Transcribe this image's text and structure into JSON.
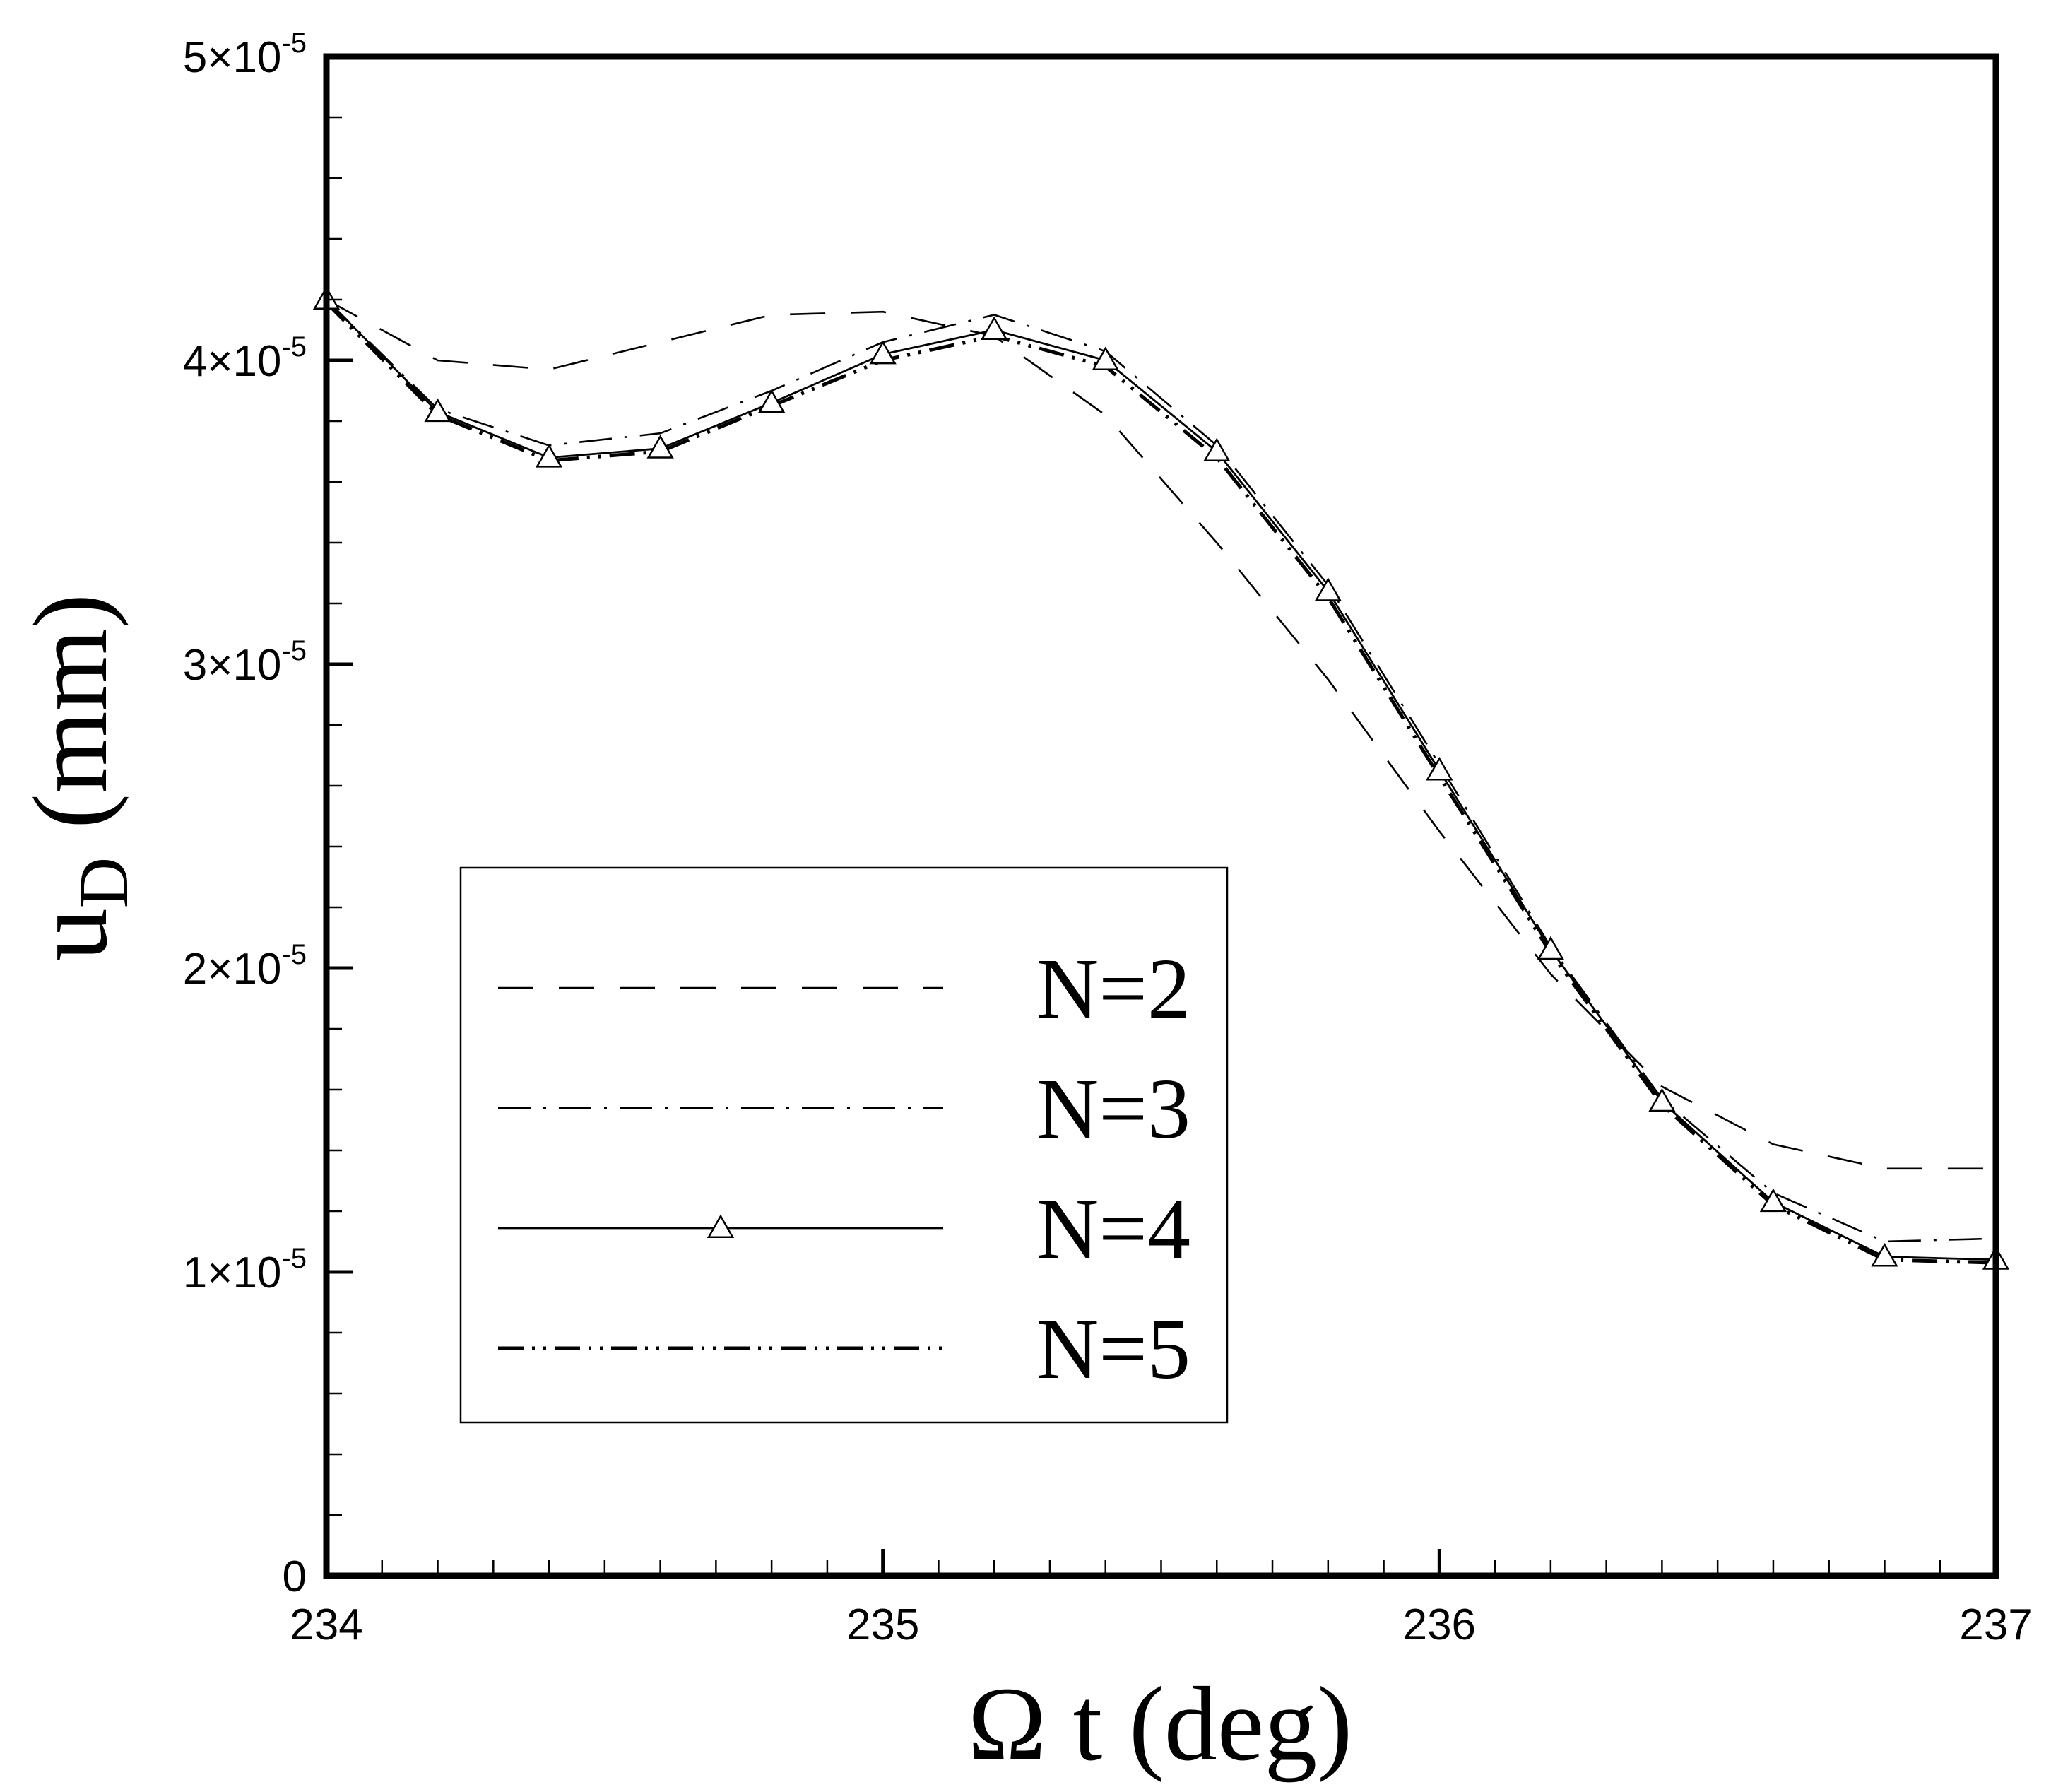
{
  "chart_data": {
    "type": "line",
    "title": "",
    "xlabel": "Ω t  (deg)",
    "ylabel_main": "u",
    "ylabel_sub": "D",
    "ylabel_unit": "(mm)",
    "xlim": [
      234,
      237
    ],
    "ylim": [
      0,
      5e-05
    ],
    "grid": false,
    "legend_position": "lower-left",
    "x_ticks": [
      {
        "value": 234,
        "label": "234"
      },
      {
        "value": 235,
        "label": "235"
      },
      {
        "value": 236,
        "label": "236"
      },
      {
        "value": 237,
        "label": "237"
      }
    ],
    "y_ticks": [
      {
        "value": 0,
        "mantissa": "0",
        "exponent": ""
      },
      {
        "value": 1e-05,
        "mantissa": "1×10",
        "exponent": "-5"
      },
      {
        "value": 2e-05,
        "mantissa": "2×10",
        "exponent": "-5"
      },
      {
        "value": 3e-05,
        "mantissa": "3×10",
        "exponent": "-5"
      },
      {
        "value": 4e-05,
        "mantissa": "4×10",
        "exponent": "-5"
      },
      {
        "value": 5e-05,
        "mantissa": "5×10",
        "exponent": "-5"
      }
    ],
    "series": [
      {
        "name": "N=2",
        "style": "dashed",
        "marker": "",
        "x": [
          234.0,
          234.2,
          234.4,
          234.6,
          234.8,
          235.0,
          235.2,
          235.4,
          235.6,
          235.8,
          236.0,
          236.2,
          236.4,
          236.6,
          236.8,
          237.0
        ],
        "y": [
          4.2e-05,
          4e-05,
          3.97e-05,
          4.06e-05,
          4.15e-05,
          4.16e-05,
          4.08e-05,
          3.82e-05,
          3.4e-05,
          2.95e-05,
          2.45e-05,
          1.98e-05,
          1.61e-05,
          1.42e-05,
          1.34e-05,
          1.34e-05
        ]
      },
      {
        "name": "N=3",
        "style": "dashdot",
        "marker": "",
        "x": [
          234.0,
          234.2,
          234.4,
          234.6,
          234.8,
          235.0,
          235.2,
          235.4,
          235.6,
          235.8,
          236.0,
          236.2,
          236.4,
          236.6,
          236.8,
          237.0
        ],
        "y": [
          4.2e-05,
          3.84e-05,
          3.72e-05,
          3.76e-05,
          3.9e-05,
          4.06e-05,
          4.15e-05,
          4.03e-05,
          3.72e-05,
          3.26e-05,
          2.67e-05,
          2.07e-05,
          1.57e-05,
          1.26e-05,
          1.1e-05,
          1.11e-05
        ]
      },
      {
        "name": "N=4",
        "style": "solid",
        "marker": "triangle",
        "x": [
          234.0,
          234.2,
          234.4,
          234.6,
          234.8,
          235.0,
          235.2,
          235.4,
          235.6,
          235.8,
          236.0,
          236.2,
          236.4,
          236.6,
          236.8,
          237.0
        ],
        "y": [
          4.2e-05,
          3.83e-05,
          3.68e-05,
          3.71e-05,
          3.86e-05,
          4.02e-05,
          4.1e-05,
          4e-05,
          3.7e-05,
          3.24e-05,
          2.65e-05,
          2.06e-05,
          1.56e-05,
          1.23e-05,
          1.05e-05,
          1.04e-05
        ]
      },
      {
        "name": "N=5",
        "style": "dashdotdot",
        "marker": "",
        "x": [
          234.0,
          234.2,
          234.4,
          234.6,
          234.8,
          235.0,
          235.2,
          235.4,
          235.6,
          235.8,
          236.0,
          236.2,
          236.4,
          236.6,
          236.8,
          237.0
        ],
        "y": [
          4.19e-05,
          3.82e-05,
          3.67e-05,
          3.7e-05,
          3.85e-05,
          4e-05,
          4.08e-05,
          3.98e-05,
          3.68e-05,
          3.22e-05,
          2.63e-05,
          2.05e-05,
          1.55e-05,
          1.22e-05,
          1.04e-05,
          1.03e-05
        ]
      }
    ]
  }
}
